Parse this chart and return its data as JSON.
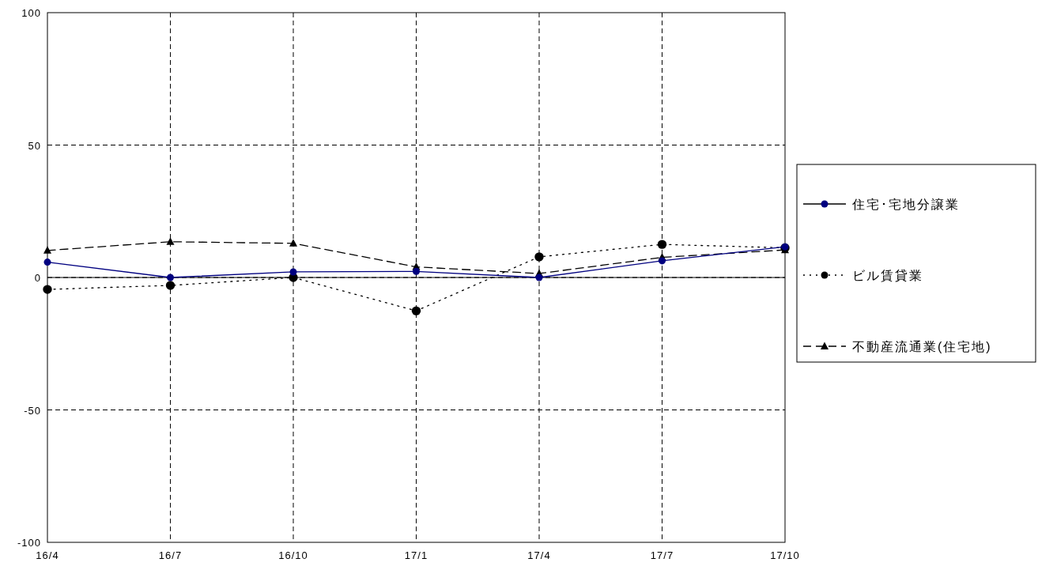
{
  "chart_data": {
    "type": "line",
    "categories": [
      "16/4",
      "16/7",
      "16/10",
      "17/1",
      "17/4",
      "17/7",
      "17/10"
    ],
    "series": [
      {
        "name": "住宅･宅地分譲業",
        "color": "#000080",
        "marker": "circle",
        "line_style": "solid",
        "values": [
          5.8,
          0,
          2.1,
          2.3,
          0,
          6.3,
          11.6
        ]
      },
      {
        "name": "ビル賃貸業",
        "color": "#000000",
        "marker": "circle",
        "line_style": "dotted",
        "values": [
          -4.5,
          -3,
          0,
          -12.6,
          7.8,
          12.5,
          11.2
        ]
      },
      {
        "name": "不動産流通業(住宅地)",
        "color": "#000000",
        "marker": "triangle",
        "line_style": "dashed",
        "values": [
          10.2,
          13.5,
          12.9,
          4.0,
          1.5,
          7.6,
          10.4
        ]
      }
    ],
    "ylim": [
      -100,
      100
    ],
    "yticks": [
      -100,
      -50,
      0,
      50,
      100
    ],
    "grid": true,
    "legend": "right",
    "ref_lines": [
      {
        "axis": "y",
        "value": 0,
        "color": "#000000",
        "line_style": "solid"
      }
    ]
  }
}
